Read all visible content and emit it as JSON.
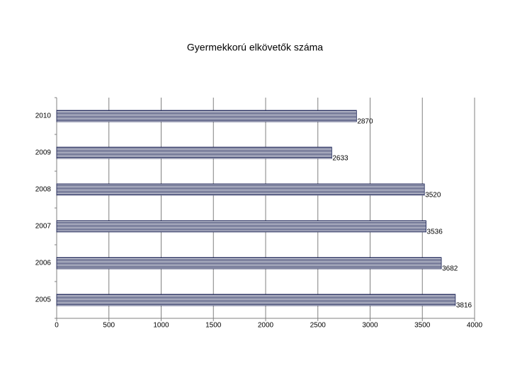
{
  "chart_data": {
    "type": "hbar",
    "title": "Gyermekkorú elkövetők száma",
    "categories": [
      "2010",
      "2009",
      "2008",
      "2007",
      "2006",
      "2005"
    ],
    "values": [
      2870,
      2633,
      3520,
      3536,
      3682,
      3816
    ],
    "color": "#1c2456",
    "label_color": "#c00000",
    "xlim": [
      0,
      4000
    ],
    "xticks": [
      0,
      500,
      1000,
      1500,
      2000,
      2500,
      3000,
      3500,
      4000
    ],
    "grid": true
  }
}
